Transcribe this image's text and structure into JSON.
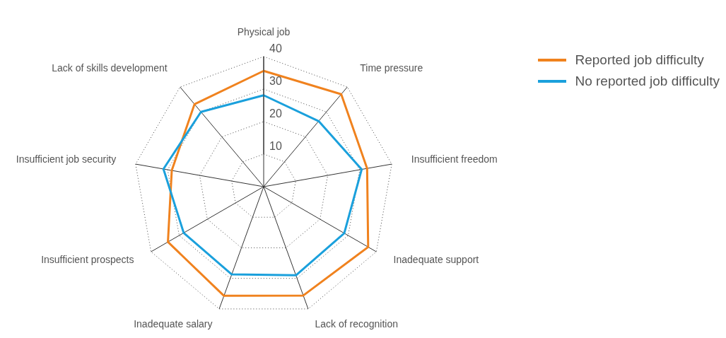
{
  "chart_data": {
    "type": "radar",
    "categories": [
      "Physical job",
      "Time pressure",
      "Insufficient freedom",
      "Inadequate support",
      "Lack of recognition",
      "Inadequate salary",
      "Insufficient prospects",
      "Insufficient job security",
      "Lack of skills development"
    ],
    "series": [
      {
        "name": "Reported job difficulty",
        "color": "#f0821e",
        "values": [
          35.6,
          37.1,
          32.3,
          37.1,
          35.6,
          35.7,
          34.0,
          28.7,
          33.1
        ]
      },
      {
        "name": "No reported job difficulty",
        "color": "#1aa0dc",
        "values": [
          28.1,
          26.3,
          30.6,
          28.6,
          29.0,
          28.7,
          28.4,
          31.3,
          30.0
        ]
      }
    ],
    "ylim": [
      0,
      40
    ],
    "yticks": [
      10,
      20,
      30,
      40
    ],
    "grid": true,
    "legend": "top right"
  }
}
